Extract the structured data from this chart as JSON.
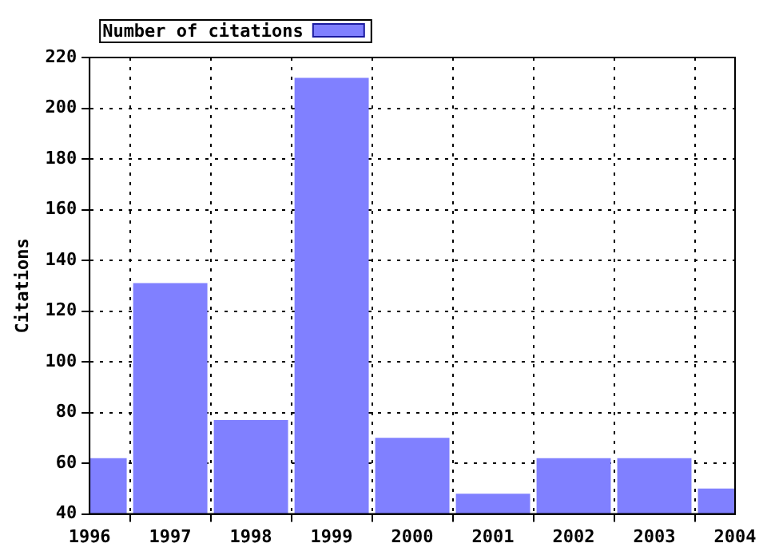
{
  "chart_data": {
    "type": "bar",
    "ylabel": "Citations",
    "x": [
      1996,
      1997,
      1998,
      1999,
      2000,
      2001,
      2002,
      2003,
      2004
    ],
    "series": [
      {
        "name": "Number of citations",
        "color": "#8080ff",
        "values": [
          62,
          131,
          77,
          212,
          70,
          48,
          62,
          62,
          50
        ]
      }
    ],
    "xlim": [
      1996,
      2004
    ],
    "xticks": [
      1996,
      1997,
      1998,
      1999,
      2000,
      2001,
      2002,
      2003,
      2004
    ],
    "ylim": [
      40,
      220
    ],
    "yticks": [
      40,
      60,
      80,
      100,
      120,
      140,
      160,
      180,
      200,
      220
    ],
    "grid": true,
    "legend": "top left"
  }
}
